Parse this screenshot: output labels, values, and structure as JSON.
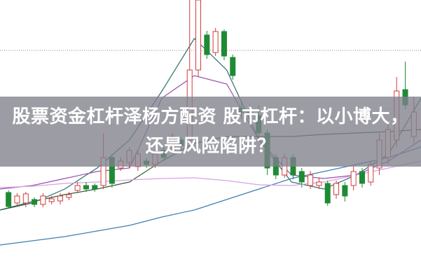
{
  "headline": "股票资金杠杆泽杨方配资 股市杠杆：以小博大，还是风险陷阱？",
  "colors": {
    "up": "#d33b3b",
    "down": "#1f8a34",
    "overlay": "#80808c"
  },
  "chart_data": {
    "type": "candlestick",
    "title": "",
    "xlabel": "",
    "ylabel": "",
    "ylim": [
      0,
      400
    ],
    "grid": "single dotted horizontal line",
    "reference_line": 328,
    "candles": [
      {
        "o": 125,
        "c": 105,
        "h": 128,
        "l": 102
      },
      {
        "o": 110,
        "c": 120,
        "h": 124,
        "l": 106
      },
      {
        "o": 110,
        "c": 123,
        "h": 126,
        "l": 104
      },
      {
        "o": 115,
        "c": 108,
        "h": 118,
        "l": 104
      },
      {
        "o": 108,
        "c": 120,
        "h": 124,
        "l": 104
      },
      {
        "o": 112,
        "c": 116,
        "h": 120,
        "l": 108
      },
      {
        "o": 113,
        "c": 120,
        "h": 124,
        "l": 108
      },
      {
        "o": 118,
        "c": 122,
        "h": 126,
        "l": 114
      },
      {
        "o": 128,
        "c": 135,
        "h": 140,
        "l": 124
      },
      {
        "o": 135,
        "c": 130,
        "h": 140,
        "l": 126
      },
      {
        "o": 135,
        "c": 130,
        "h": 138,
        "l": 126
      },
      {
        "o": 135,
        "c": 175,
        "h": 210,
        "l": 130
      },
      {
        "o": 175,
        "c": 138,
        "h": 180,
        "l": 132
      },
      {
        "o": 160,
        "c": 170,
        "h": 176,
        "l": 156
      },
      {
        "o": 168,
        "c": 185,
        "h": 190,
        "l": 160
      },
      {
        "o": 162,
        "c": 180,
        "h": 186,
        "l": 156
      },
      {
        "o": 170,
        "c": 165,
        "h": 174,
        "l": 160
      },
      {
        "o": 165,
        "c": 180,
        "h": 186,
        "l": 160
      },
      {
        "o": 185,
        "c": 175,
        "h": 190,
        "l": 170
      },
      {
        "o": 185,
        "c": 205,
        "h": 210,
        "l": 180
      },
      {
        "o": 200,
        "c": 192,
        "h": 204,
        "l": 186
      },
      {
        "o": 200,
        "c": 300,
        "h": 400,
        "l": 195
      },
      {
        "o": 300,
        "c": 400,
        "h": 400,
        "l": 290
      },
      {
        "o": 350,
        "c": 322,
        "h": 356,
        "l": 316
      },
      {
        "o": 325,
        "c": 355,
        "h": 360,
        "l": 320
      },
      {
        "o": 355,
        "c": 320,
        "h": 358,
        "l": 314
      },
      {
        "o": 318,
        "c": 292,
        "h": 322,
        "l": 286
      },
      {
        "o": 245,
        "c": 240,
        "h": 256,
        "l": 230
      },
      {
        "o": 240,
        "c": 235,
        "h": 250,
        "l": 226
      },
      {
        "o": 235,
        "c": 210,
        "h": 250,
        "l": 200
      },
      {
        "o": 210,
        "c": 160,
        "h": 215,
        "l": 150
      },
      {
        "o": 175,
        "c": 150,
        "h": 180,
        "l": 144
      },
      {
        "o": 150,
        "c": 175,
        "h": 180,
        "l": 146
      },
      {
        "o": 175,
        "c": 150,
        "h": 180,
        "l": 144
      },
      {
        "o": 155,
        "c": 140,
        "h": 160,
        "l": 132
      },
      {
        "o": 135,
        "c": 150,
        "h": 156,
        "l": 130
      },
      {
        "o": 135,
        "c": 140,
        "h": 146,
        "l": 130
      },
      {
        "o": 138,
        "c": 110,
        "h": 142,
        "l": 106
      },
      {
        "o": 122,
        "c": 138,
        "h": 142,
        "l": 116
      },
      {
        "o": 135,
        "c": 120,
        "h": 140,
        "l": 112
      },
      {
        "o": 135,
        "c": 155,
        "h": 162,
        "l": 128
      },
      {
        "o": 155,
        "c": 138,
        "h": 160,
        "l": 132
      },
      {
        "o": 140,
        "c": 165,
        "h": 170,
        "l": 135
      },
      {
        "o": 160,
        "c": 200,
        "h": 210,
        "l": 150
      },
      {
        "o": 175,
        "c": 215,
        "h": 225,
        "l": 165
      },
      {
        "o": 200,
        "c": 270,
        "h": 290,
        "l": 190
      },
      {
        "o": 272,
        "c": 250,
        "h": 312,
        "l": 244
      },
      {
        "o": 205,
        "c": 240,
        "h": 262,
        "l": 195
      }
    ],
    "moving_averages": [
      {
        "color": "#2a6f6a",
        "values": [
          100,
          110,
          130,
          160,
          200,
          270,
          345,
          300,
          200,
          140,
          130,
          150,
          180,
          260
        ]
      },
      {
        "color": "#9a4fae",
        "values": [
          130,
          135,
          145,
          155,
          160,
          260,
          292,
          280,
          200,
          150,
          145,
          150,
          170,
          200
        ]
      },
      {
        "color": "#2f5e3a",
        "values": [
          100,
          112,
          122,
          130,
          140,
          170,
          195,
          205,
          205,
          205,
          208,
          210,
          212,
          215
        ]
      },
      {
        "color": "#3d7fb0",
        "values": [
          50,
          56,
          62,
          70,
          78,
          90,
          100,
          115,
          130,
          145,
          155,
          165,
          175,
          190
        ]
      },
      {
        "color": "#d9a0e6",
        "values": [
          132,
          134,
          138,
          140,
          143,
          145,
          146,
          142,
          136,
          135,
          140,
          150,
          160,
          170
        ]
      }
    ]
  }
}
